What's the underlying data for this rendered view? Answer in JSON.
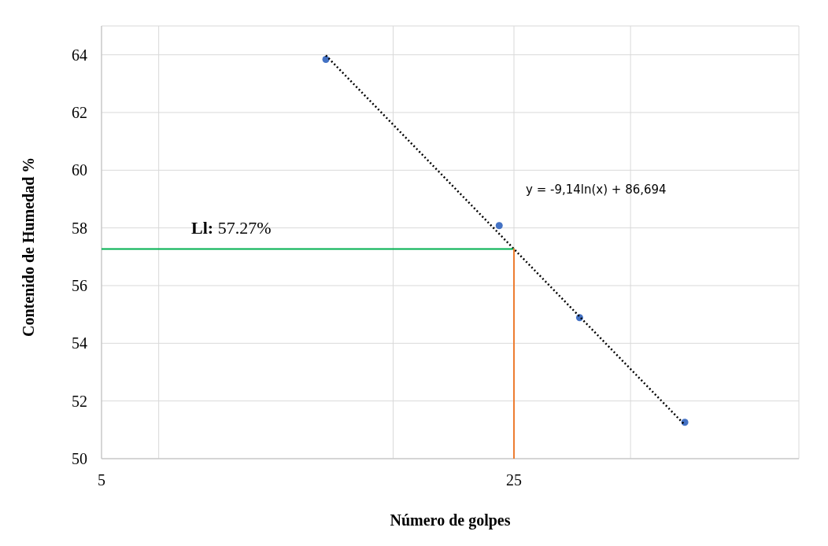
{
  "chart_data": {
    "type": "scatter",
    "xlabel": "Número de golpes",
    "ylabel": "Contenido de Humedad %",
    "log": "x",
    "xlim": [
      5,
      76
    ],
    "xticks": [
      5,
      {
        "value": 6.25,
        "label": null
      },
      {
        "value": 15.6,
        "label": null
      },
      25,
      {
        "value": 39.4,
        "label": null
      }
    ],
    "ylim": [
      50,
      65
    ],
    "yticks": [
      50,
      52,
      54,
      56,
      58,
      60,
      62,
      64
    ],
    "grid": true,
    "legend": false,
    "series": [
      {
        "color": "#4472c4",
        "marker": "circle",
        "x": [
          12,
          23.6,
          32.3,
          48.7
        ],
        "values": [
          63.84,
          58.08,
          54.89,
          51.26
        ]
      },
      {
        "type": "line",
        "color": "#000000",
        "line_style": "dotted",
        "marker": "none",
        "x": [
          12,
          48.7
        ],
        "values": [
          63.98,
          51.17
        ]
      },
      {
        "type": "line",
        "color": "#00b050",
        "line_style": "solid",
        "marker": "none",
        "x": [
          5,
          25
        ],
        "values": [
          57.27,
          57.27
        ]
      },
      {
        "type": "line",
        "color": "#ed7d31",
        "line_style": "solid",
        "marker": "none",
        "x": [
          25,
          25
        ],
        "values": [
          50,
          57.27
        ]
      }
    ],
    "annotations": [
      "Ll: 57.27%",
      "y = -9,14ln(x) + 86,694"
    ]
  }
}
